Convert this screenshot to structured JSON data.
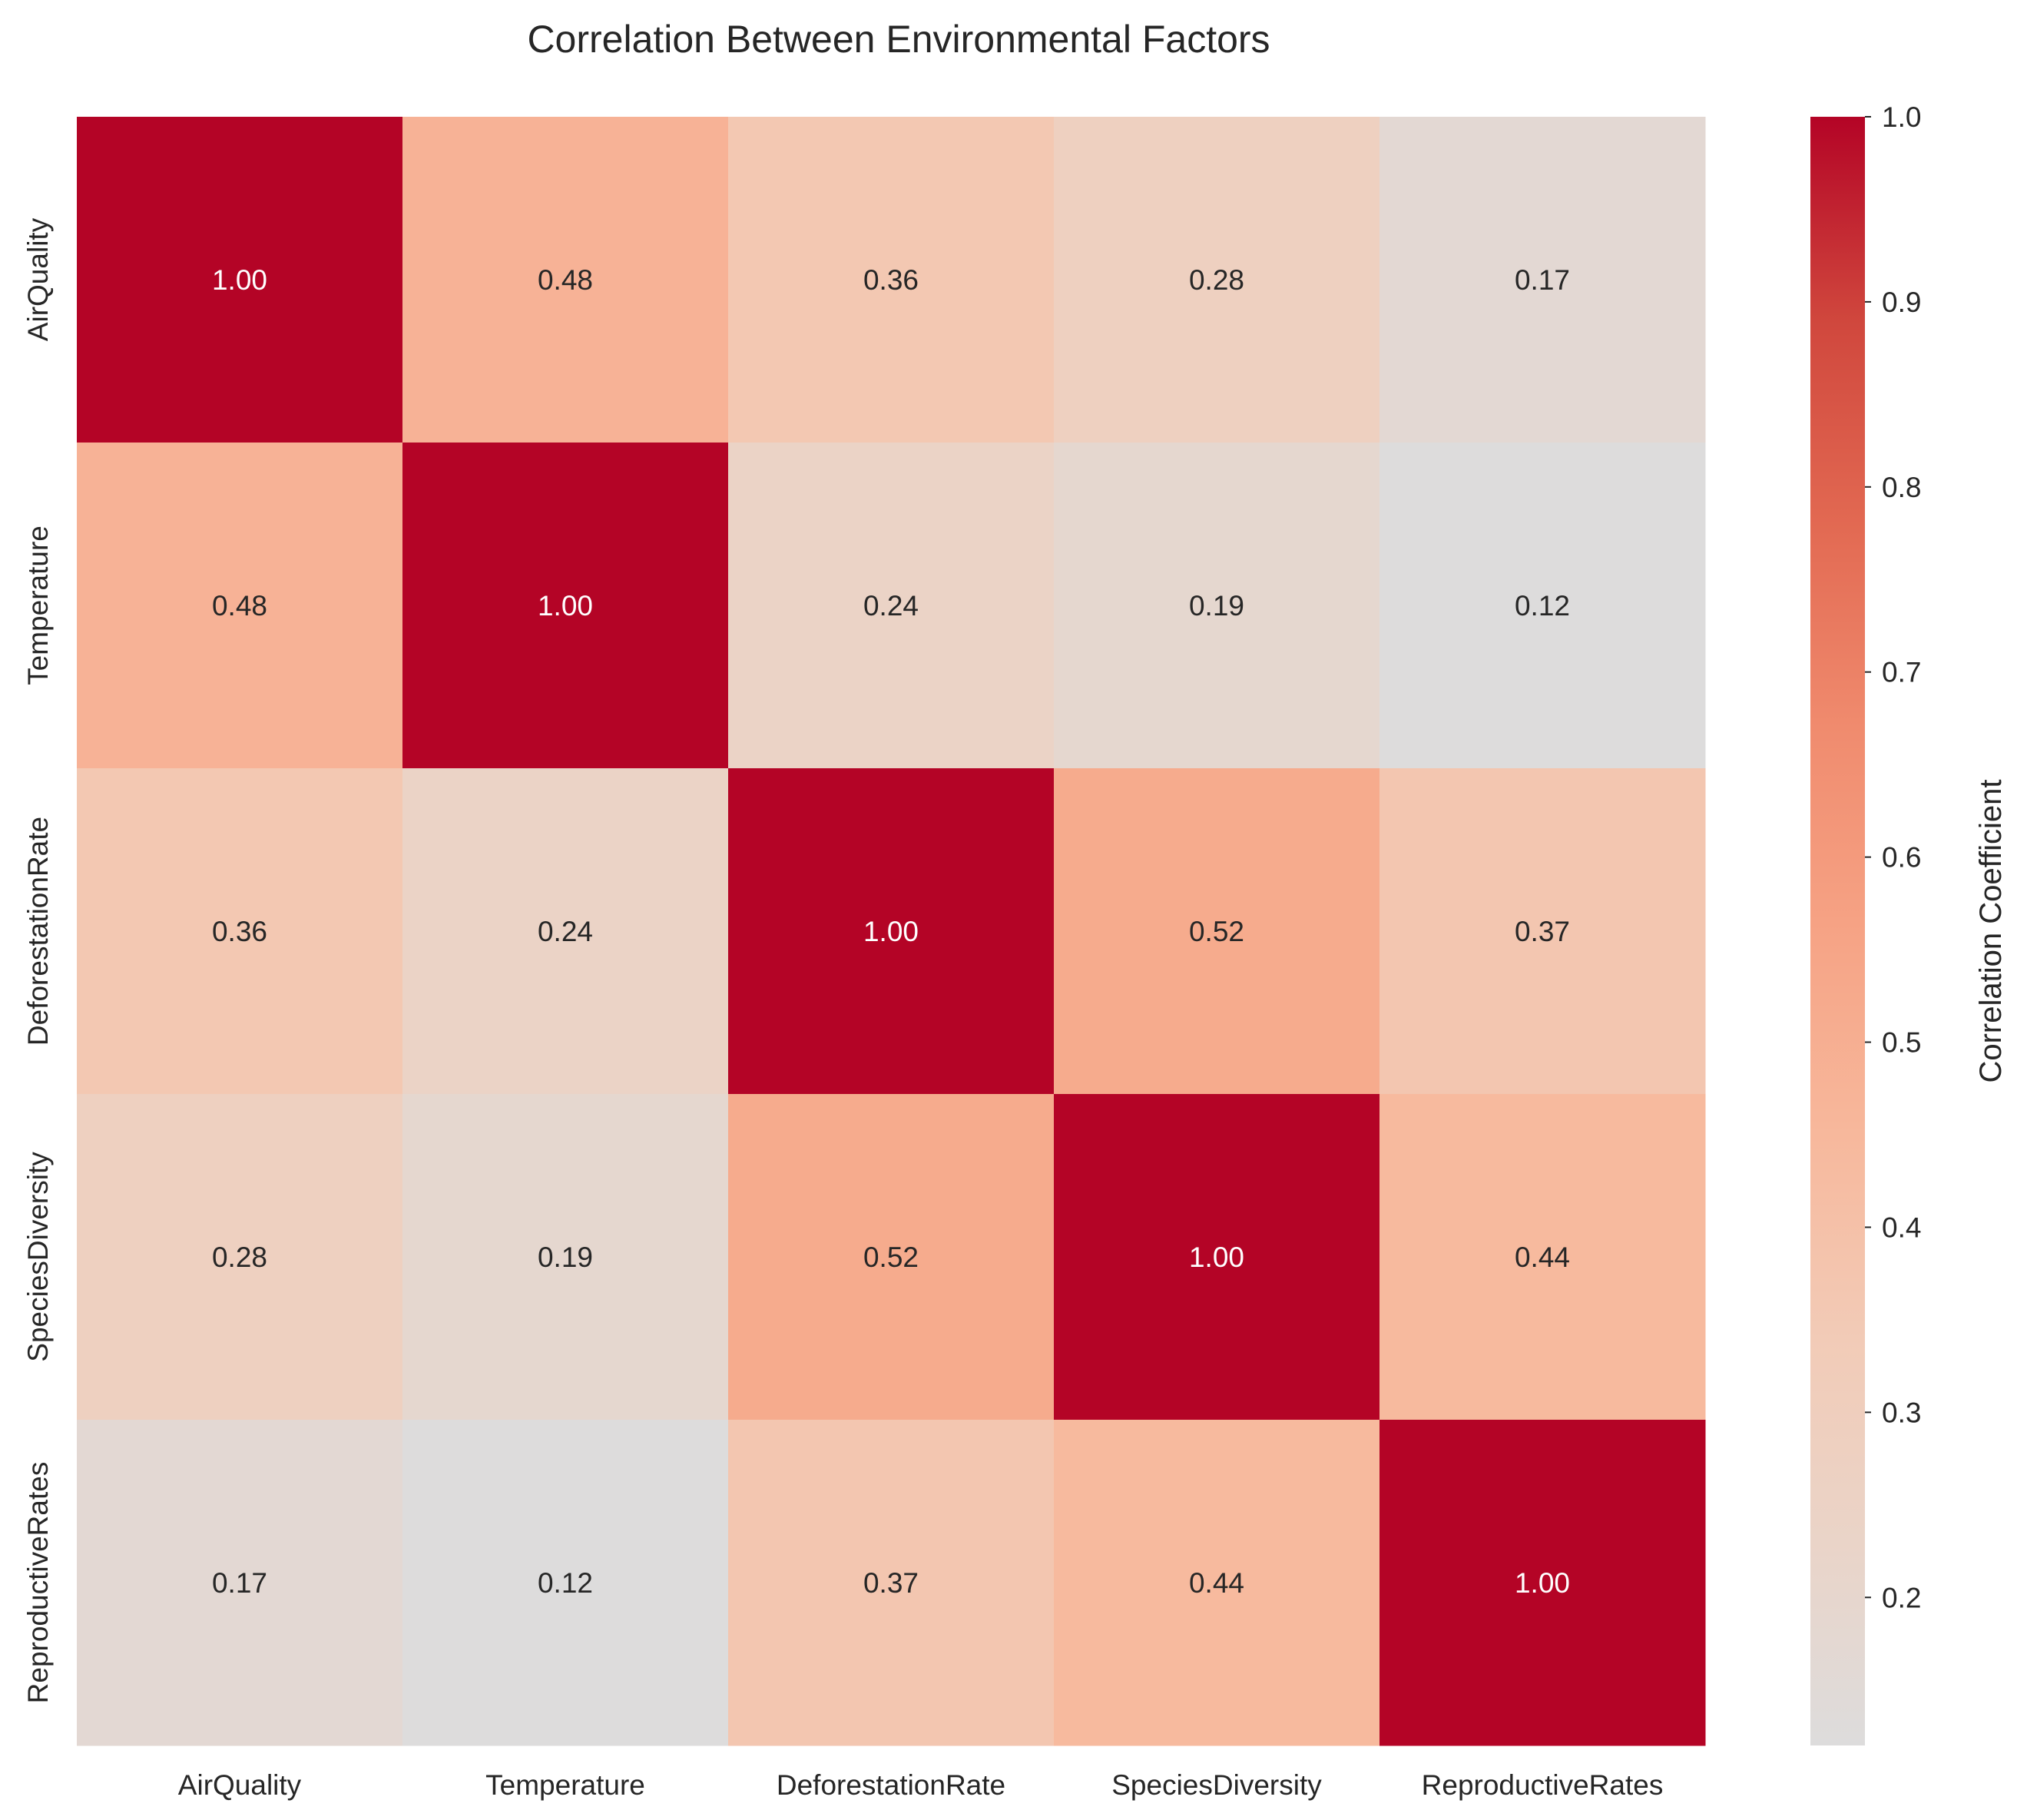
{
  "chart_data": {
    "type": "heatmap",
    "title": "Correlation Between Environmental Factors",
    "x_labels": [
      "AirQuality",
      "Temperature",
      "DeforestationRate",
      "SpeciesDiversity",
      "ReproductiveRates"
    ],
    "y_labels": [
      "AirQuality",
      "Temperature",
      "DeforestationRate",
      "SpeciesDiversity",
      "ReproductiveRates"
    ],
    "values": [
      [
        1.0,
        0.48,
        0.36,
        0.28,
        0.17
      ],
      [
        0.48,
        1.0,
        0.24,
        0.19,
        0.12
      ],
      [
        0.36,
        0.24,
        1.0,
        0.52,
        0.37
      ],
      [
        0.28,
        0.19,
        0.52,
        1.0,
        0.44
      ],
      [
        0.17,
        0.12,
        0.37,
        0.44,
        1.0
      ]
    ],
    "value_labels": [
      [
        "1.00",
        "0.48",
        "0.36",
        "0.28",
        "0.17"
      ],
      [
        "0.48",
        "1.00",
        "0.24",
        "0.19",
        "0.12"
      ],
      [
        "0.36",
        "0.24",
        "1.00",
        "0.52",
        "0.37"
      ],
      [
        "0.28",
        "0.19",
        "0.52",
        "1.00",
        "0.44"
      ],
      [
        "0.17",
        "0.12",
        "0.37",
        "0.44",
        "1.00"
      ]
    ],
    "colorbar": {
      "label": "Correlation Coefficient",
      "range": [
        0.12,
        1.0
      ],
      "ticks": [
        1.0,
        0.9,
        0.8,
        0.7,
        0.6,
        0.5,
        0.4,
        0.3,
        0.2
      ],
      "tick_labels": [
        "1.0",
        "0.9",
        "0.8",
        "0.7",
        "0.6",
        "0.5",
        "0.4",
        "0.3",
        "0.2"
      ]
    },
    "colormap": {
      "name": "coolwarm-upper-half",
      "stops": [
        "#dddcdc",
        "#ead4c8",
        "#f2cbb7",
        "#f7b89c",
        "#f6a385",
        "#f08b6e",
        "#e26952",
        "#d0473d",
        "#b40426"
      ]
    },
    "annotation_text_colors": {
      "light_cell": "#262626",
      "dark_cell": "#ffffff"
    },
    "grid": false
  }
}
